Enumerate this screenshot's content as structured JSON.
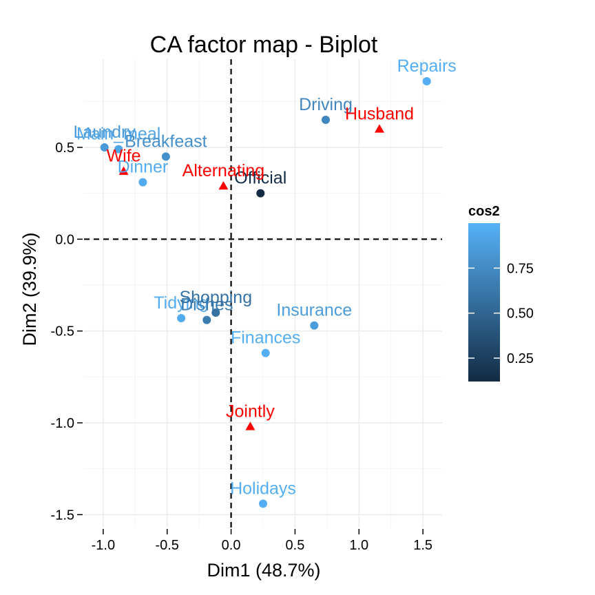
{
  "chart_data": {
    "type": "scatter",
    "title": "CA factor map - Biplot",
    "xlabel": "Dim1 (48.7%)",
    "ylabel": "Dim2 (39.9%)",
    "xlim": [
      -1.15,
      1.65
    ],
    "ylim": [
      -1.57,
      0.98
    ],
    "x_ticks": [
      -1.0,
      -0.5,
      0.0,
      0.5,
      1.0,
      1.5
    ],
    "x_tick_labels": [
      "-1.0",
      "-0.5",
      "0.0",
      "0.5",
      "1.0",
      "1.5"
    ],
    "y_ticks": [
      -1.5,
      -1.0,
      -0.5,
      0.0,
      0.5
    ],
    "y_tick_labels": [
      "-1.5",
      "-1.0",
      "-0.5",
      "0.0",
      "0.5"
    ],
    "grid": true,
    "reference_lines": {
      "x": 0,
      "y": 0,
      "style": "dashed"
    },
    "row_points": [
      {
        "label": "Laundry",
        "x": -0.99,
        "y": 0.5,
        "cos2": 0.85
      },
      {
        "label": "Main_meal",
        "x": -0.88,
        "y": 0.49,
        "cos2": 0.92
      },
      {
        "label": "Dinner",
        "x": -0.69,
        "y": 0.31,
        "cos2": 0.96
      },
      {
        "label": "Breakfeast",
        "x": -0.51,
        "y": 0.45,
        "cos2": 0.78
      },
      {
        "label": "Tidying",
        "x": -0.39,
        "y": -0.43,
        "cos2": 0.96
      },
      {
        "label": "Dishes",
        "x": -0.19,
        "y": -0.44,
        "cos2": 0.66
      },
      {
        "label": "Shopping",
        "x": -0.12,
        "y": -0.4,
        "cos2": 0.58
      },
      {
        "label": "Official",
        "x": 0.23,
        "y": 0.25,
        "cos2": 0.12
      },
      {
        "label": "Driving",
        "x": 0.74,
        "y": 0.65,
        "cos2": 0.72
      },
      {
        "label": "Finances",
        "x": 0.27,
        "y": -0.62,
        "cos2": 0.98
      },
      {
        "label": "Insurance",
        "x": 0.65,
        "y": -0.47,
        "cos2": 0.86
      },
      {
        "label": "Repairs",
        "x": 1.53,
        "y": 0.86,
        "cos2": 0.98
      },
      {
        "label": "Holidays",
        "x": 0.25,
        "y": -1.44,
        "cos2": 0.98
      }
    ],
    "column_points": [
      {
        "label": "Wife",
        "x": -0.84,
        "y": 0.37
      },
      {
        "label": "Alternating",
        "x": -0.06,
        "y": 0.29
      },
      {
        "label": "Jointly",
        "x": 0.15,
        "y": -1.02
      },
      {
        "label": "Husband",
        "x": 1.16,
        "y": 0.6
      }
    ],
    "column_color": "#ff0000",
    "legend": {
      "title": "cos2",
      "position": "right",
      "ticks": [
        0.25,
        0.5,
        0.75
      ],
      "tick_labels": [
        "0.25",
        "0.50",
        "0.75"
      ],
      "range": [
        0.12,
        1.0
      ],
      "color_low": "#132b43",
      "color_high": "#56b1f7"
    }
  }
}
